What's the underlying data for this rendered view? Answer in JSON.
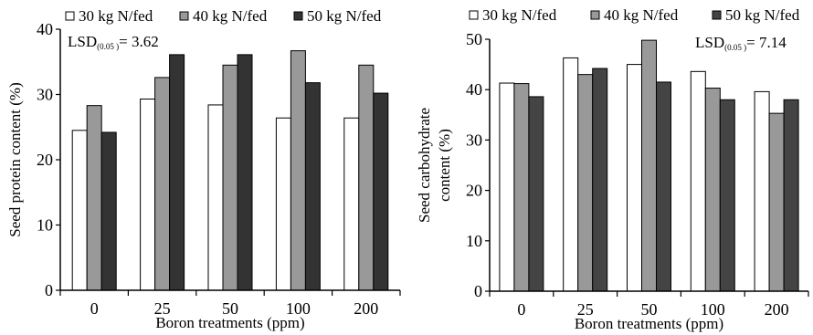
{
  "chart_data": [
    {
      "type": "bar",
      "categories": [
        "0",
        "25",
        "50",
        "100",
        "200"
      ],
      "series": [
        {
          "name": "30 kg N/fed",
          "color": "#ffffff",
          "values": [
            24.5,
            29.3,
            28.4,
            26.4,
            26.4
          ]
        },
        {
          "name": "40 kg N/fed",
          "color": "#999999",
          "values": [
            28.3,
            32.6,
            34.5,
            36.7,
            34.5
          ]
        },
        {
          "name": "50 kg N/fed",
          "color": "#333333",
          "values": [
            24.2,
            36.1,
            36.1,
            31.8,
            30.2
          ]
        }
      ],
      "xlabel": "Boron treatments (ppm)",
      "ylabel": "Seed protein content (%)",
      "ylim": [
        0,
        40
      ],
      "yticks": [
        "0",
        "10",
        "20",
        "30",
        "40"
      ],
      "annotation": {
        "prefix": "LSD",
        "subscript": "(0.05 )",
        "text": "= 3.62"
      },
      "legend_position": "top",
      "grid": false
    },
    {
      "type": "bar",
      "categories": [
        "0",
        "25",
        "50",
        "100",
        "200"
      ],
      "series": [
        {
          "name": "30 kg N/fed",
          "color": "#ffffff",
          "values": [
            41.3,
            46.3,
            45.0,
            43.6,
            39.6
          ]
        },
        {
          "name": "40 kg N/fed",
          "color": "#999999",
          "values": [
            41.2,
            43.0,
            49.8,
            40.3,
            35.3
          ]
        },
        {
          "name": "50 kg N/fed",
          "color": "#444444",
          "values": [
            38.6,
            44.2,
            41.5,
            38.0,
            38.0
          ]
        }
      ],
      "xlabel": "Boron treatments (ppm)",
      "ylabel": [
        "Seed carbohydrate",
        "content (%)"
      ],
      "ylim": [
        0,
        50
      ],
      "yticks": [
        "0",
        "10",
        "20",
        "30",
        "40",
        "50"
      ],
      "annotation": {
        "prefix": "LSD",
        "subscript": "(0.05 )",
        "text": "= 7.14"
      },
      "legend_position": "top",
      "grid": false
    }
  ]
}
